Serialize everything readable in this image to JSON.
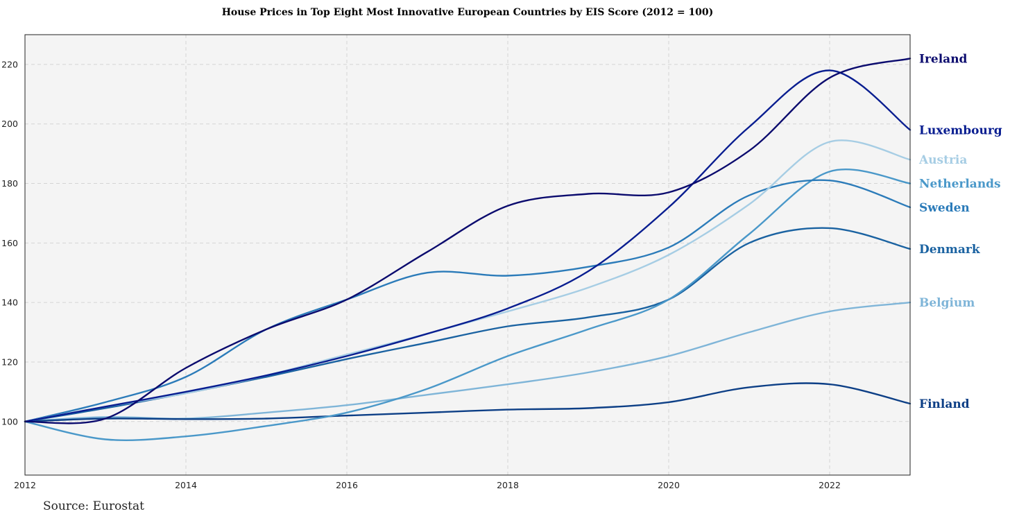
{
  "chart_data": {
    "type": "line",
    "title": "House Prices in Top Eight Most Innovative European Countries by EIS Score (2012 = 100)",
    "source": "Source: Eurostat",
    "xlim": [
      2012,
      2023
    ],
    "ylim": [
      82,
      230
    ],
    "x_ticks": [
      2012,
      2014,
      2016,
      2018,
      2020,
      2022
    ],
    "y_ticks": [
      100,
      120,
      140,
      160,
      180,
      200,
      220
    ],
    "grid": true,
    "legend": "right-end labels",
    "x": [
      2012,
      2013,
      2014,
      2015,
      2016,
      2017,
      2018,
      2019,
      2020,
      2021,
      2022,
      2023
    ],
    "series": [
      {
        "name": "Belgium",
        "color": "#7fb5d8",
        "values": [
          100,
          101.5,
          101,
          103,
          105.5,
          109,
          112.5,
          116.5,
          122,
          130,
          137,
          140
        ]
      },
      {
        "name": "Finland",
        "color": "#0d3f86",
        "values": [
          100,
          101,
          100.8,
          101,
          102,
          103,
          104,
          104.5,
          106.5,
          111.5,
          112.5,
          106
        ]
      },
      {
        "name": "Denmark",
        "color": "#1a62a1",
        "values": [
          100,
          104.5,
          109.5,
          115,
          121,
          126.5,
          132,
          135,
          141,
          160,
          165,
          158
        ]
      },
      {
        "name": "Netherlands",
        "color": "#4a98c9",
        "values": [
          100,
          94,
          95,
          98.5,
          103,
          111,
          122,
          131,
          141,
          163,
          184,
          180
        ]
      },
      {
        "name": "Sweden",
        "color": "#2b7bb9",
        "values": [
          100,
          106.5,
          115,
          131,
          141,
          150,
          149,
          152,
          158.5,
          176,
          181,
          172
        ]
      },
      {
        "name": "Austria",
        "color": "#a6cde4",
        "values": [
          100,
          105,
          109.5,
          115.5,
          122.5,
          129.5,
          137,
          145,
          156,
          173,
          194,
          188
        ]
      },
      {
        "name": "Luxembourg",
        "color": "#081d90",
        "values": [
          100,
          105,
          110,
          115.5,
          122,
          129.5,
          138,
          150.5,
          172,
          199,
          218,
          198
        ]
      },
      {
        "name": "Ireland",
        "color": "#0b0b6e",
        "values": [
          100,
          101,
          118,
          131,
          141,
          157,
          172.5,
          176.5,
          177,
          191,
          215.5,
          222
        ]
      }
    ]
  }
}
